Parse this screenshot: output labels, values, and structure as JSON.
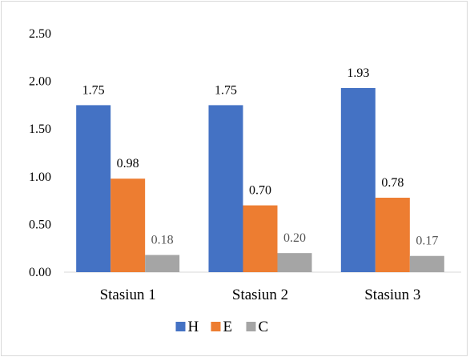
{
  "chart_data": {
    "type": "bar",
    "categories": [
      "Stasiun 1",
      "Stasiun 2",
      "Stasiun 3"
    ],
    "series": [
      {
        "name": "H",
        "values": [
          1.75,
          1.75,
          1.93
        ],
        "labels": [
          "1.75",
          "1.75",
          "1.93"
        ],
        "color": "#4472c4"
      },
      {
        "name": "E",
        "values": [
          0.98,
          0.7,
          0.78
        ],
        "labels": [
          "0.98",
          "0.70",
          "0.78"
        ],
        "color": "#ed7d31"
      },
      {
        "name": "C",
        "values": [
          0.18,
          0.2,
          0.17
        ],
        "labels": [
          "0.18",
          "0.20",
          "0.17"
        ],
        "color": "#a5a5a5"
      }
    ],
    "ylim": [
      0,
      2.5
    ],
    "yticks": [
      0.0,
      0.5,
      1.0,
      1.5,
      2.0,
      2.5
    ],
    "ytick_labels": [
      "0.00",
      "0.50",
      "1.00",
      "1.50",
      "2.00",
      "2.50"
    ],
    "title": "",
    "xlabel": "",
    "ylabel": "",
    "grid": false,
    "legend_position": "bottom"
  }
}
